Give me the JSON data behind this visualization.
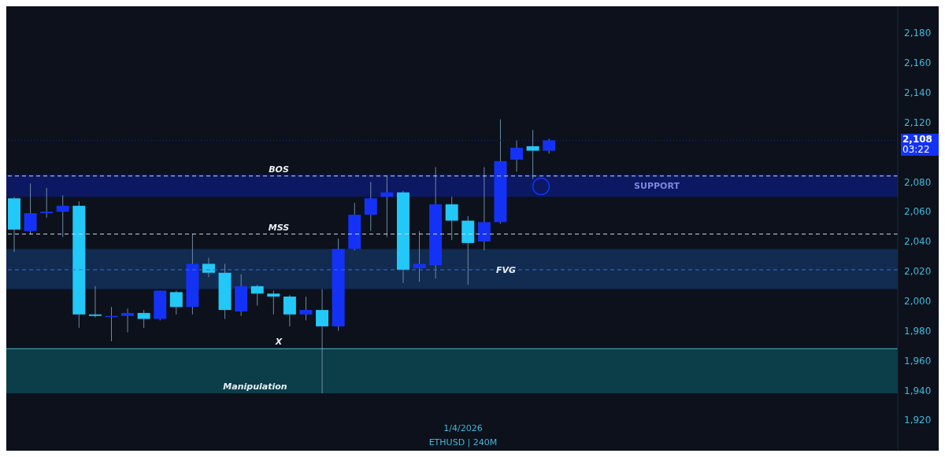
{
  "chart_data": {
    "type": "candlestick",
    "categories": [
      null,
      null,
      null,
      null,
      null,
      null,
      null,
      null,
      null,
      null,
      null,
      null,
      null,
      null,
      null,
      null,
      null,
      null,
      null,
      null,
      null,
      null,
      null,
      null,
      null,
      null,
      null,
      null,
      null,
      null,
      null,
      null,
      null,
      null,
      null,
      null,
      null,
      null,
      null,
      null,
      null,
      null,
      null,
      null,
      null,
      null,
      null,
      null,
      null,
      null,
      null,
      null,
      null,
      null,
      null
    ],
    "ohlc": [
      [
        2069,
        2070,
        2033,
        2048
      ],
      [
        2047,
        2079,
        2045,
        2059
      ],
      [
        2059,
        2076,
        2056,
        2060
      ],
      [
        2060,
        2071,
        2043,
        2064
      ],
      [
        2064,
        2067,
        1982,
        1991
      ],
      [
        1991,
        2010,
        1989,
        1990
      ],
      [
        1990,
        1996,
        1973,
        1990
      ],
      [
        1990,
        1995,
        1979,
        1992
      ],
      [
        1992,
        1994,
        1982,
        1988
      ],
      [
        1988,
        2007,
        1987,
        2007
      ],
      [
        2006,
        2007,
        1991,
        1996
      ],
      [
        1996,
        2045,
        1991,
        2025
      ],
      [
        2025,
        2029,
        2016,
        2019
      ],
      [
        2019,
        2025,
        1988,
        1994
      ],
      [
        1993,
        2018,
        1990,
        2010
      ],
      [
        2010,
        2011,
        1997,
        2005
      ],
      [
        2005,
        2007,
        1991,
        2003
      ],
      [
        2003,
        2004,
        1983,
        1991
      ],
      [
        1991,
        2003,
        1987,
        1994
      ],
      [
        1994,
        2008,
        1938,
        1983
      ],
      [
        1983,
        2042,
        1980,
        2035
      ],
      [
        2035,
        2066,
        2034,
        2058
      ],
      [
        2058,
        2080,
        2047,
        2069
      ],
      [
        2070,
        2084,
        2043,
        2073
      ],
      [
        2073,
        2074,
        2012,
        2021
      ],
      [
        2022,
        2047,
        2013,
        2025
      ],
      [
        2024,
        2090,
        2015,
        2065
      ],
      [
        2065,
        2070,
        2041,
        2054
      ],
      [
        2054,
        2057,
        2011,
        2039
      ],
      [
        2040,
        2090,
        2034,
        2053
      ],
      [
        2053,
        2122,
        2052,
        2094
      ],
      [
        2095,
        2108,
        2087,
        2103
      ],
      [
        2104,
        2115,
        2082,
        2101
      ],
      [
        2101,
        2109,
        2099,
        2108
      ],
      null,
      null,
      null,
      null,
      null,
      null,
      null,
      null,
      null,
      null,
      null,
      null,
      null,
      null,
      null,
      null,
      null,
      null,
      null,
      null,
      null
    ],
    "colors": [
      "#22c8f8",
      "#1432f5",
      "#1432f5",
      "#1432f5",
      "#22c8f8",
      "#22c8f8",
      "#1432f5",
      "#1432f5",
      "#22c8f8",
      "#1432f5",
      "#22c8f8",
      "#1432f5",
      "#22c8f8",
      "#22c8f8",
      "#1432f5",
      "#22c8f8",
      "#22c8f8",
      "#22c8f8",
      "#1432f5",
      "#22c8f8",
      "#1432f5",
      "#1432f5",
      "#1432f5",
      "#1432f5",
      "#22c8f8",
      "#1432f5",
      "#1432f5",
      "#22c8f8",
      "#22c8f8",
      "#1432f5",
      "#1432f5",
      "#1432f5",
      "#22c8f8",
      "#1432f5",
      null,
      null,
      null,
      null,
      null,
      null,
      null,
      null,
      null,
      null,
      null,
      null,
      null,
      null,
      null,
      null,
      null,
      null,
      null,
      null,
      null
    ],
    "ylim": [
      1900,
      2198
    ],
    "yticks": [
      {
        "value": 1920,
        "label": "1,920"
      },
      {
        "value": 1940,
        "label": "1,940"
      },
      {
        "value": 1960,
        "label": "1,960"
      },
      {
        "value": 1980,
        "label": "1,980"
      },
      {
        "value": 2000,
        "label": "2,000"
      },
      {
        "value": 2020,
        "label": "2,020"
      },
      {
        "value": 2040,
        "label": "2,040"
      },
      {
        "value": 2060,
        "label": "2,060"
      },
      {
        "value": 2080,
        "label": "2,080"
      },
      {
        "value": 2120,
        "label": "2,120"
      },
      {
        "value": 2140,
        "label": "2,140"
      },
      {
        "value": 2160,
        "label": "2,160"
      },
      {
        "value": 2180,
        "label": "2,180"
      }
    ],
    "ref_lines": [
      {
        "axis": "y",
        "value": 2108,
        "label": "2,108",
        "color": "#1a2a8a",
        "line_style": "dotted"
      },
      {
        "axis": "y",
        "value": 2084,
        "label": "BOS",
        "color": "#cfd6e6",
        "line_style": "dashed"
      },
      {
        "axis": "y",
        "value": 2045,
        "label": "MSS",
        "color": "#cfd6e6",
        "line_style": "dashed"
      },
      {
        "axis": "y",
        "value": 2021,
        "label": "FVG",
        "color": "#3a6fd0",
        "line_style": "dashed"
      },
      {
        "axis": "y",
        "value": 1968,
        "label": "X",
        "color": "#4fb6c8",
        "line_style": "solid"
      }
    ],
    "bands": [
      {
        "axis": "y",
        "from": 2070,
        "to": 2085,
        "label": "SUPPORT",
        "color": "#0d1a6e"
      },
      {
        "axis": "y",
        "from": 2008,
        "to": 2035,
        "color": "#13305a"
      },
      {
        "axis": "y",
        "from": 1938,
        "to": 1968,
        "label": "Manipulation",
        "color": "#0c4650"
      }
    ],
    "annotations": [
      "03:22",
      "1/4/2026",
      "ETHUSD | 240M"
    ]
  }
}
